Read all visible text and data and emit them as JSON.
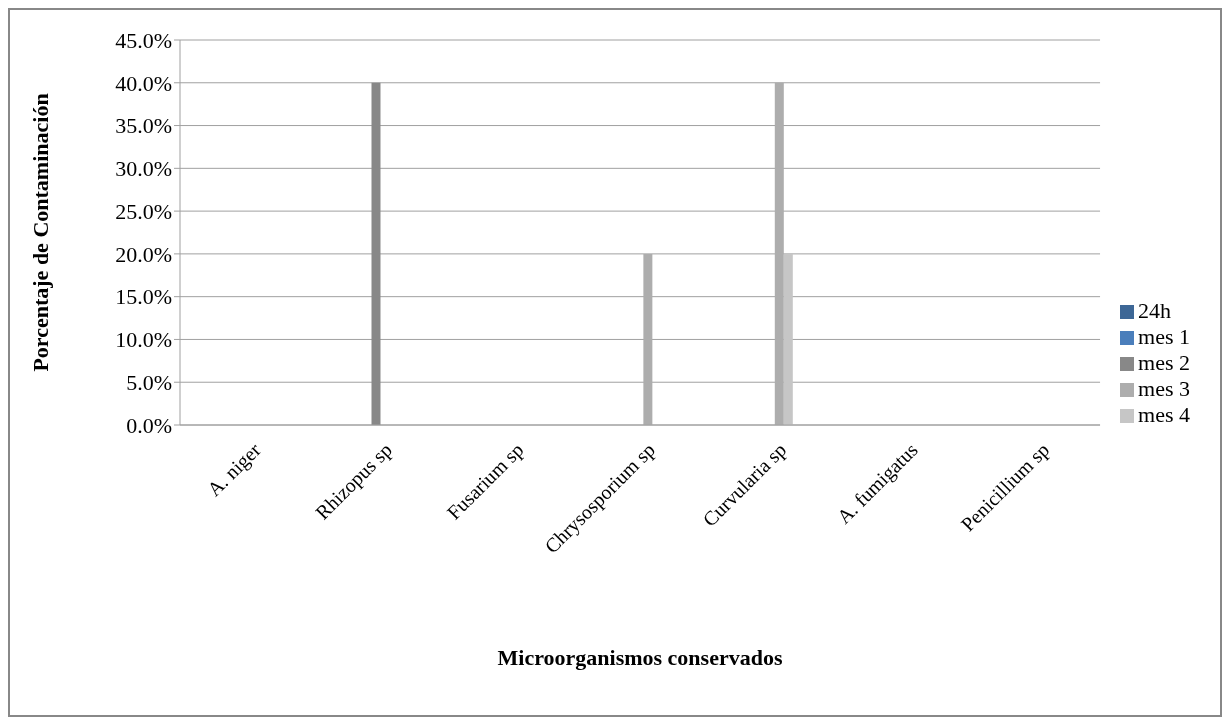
{
  "chart_data": {
    "type": "bar",
    "xlabel": "Microorganismos conservados",
    "ylabel": "Porcentaje de Contaminación",
    "categories": [
      "A. niger",
      "Rhizopus sp",
      "Fusarium sp",
      "Chrysosporium sp",
      "Curvularia sp",
      "A. fumigatus",
      "Penicillium sp"
    ],
    "series": [
      {
        "name": "24h",
        "color": "#3d6796",
        "values": [
          0,
          0,
          0,
          0,
          0,
          0,
          0
        ]
      },
      {
        "name": "mes 1",
        "color": "#4a7ebb",
        "values": [
          0,
          0,
          0,
          0,
          0,
          0,
          0
        ]
      },
      {
        "name": "mes 2",
        "color": "#888888",
        "values": [
          0,
          40,
          0,
          0,
          0,
          0,
          0
        ]
      },
      {
        "name": "mes 3",
        "color": "#adadad",
        "values": [
          0,
          0,
          0,
          20,
          40,
          0,
          0
        ]
      },
      {
        "name": "mes 4",
        "color": "#c6c6c6",
        "values": [
          0,
          0,
          0,
          0,
          20,
          0,
          0
        ]
      }
    ],
    "ylim": [
      0,
      45
    ],
    "yticks": [
      {
        "value": 0,
        "label": "0.0%"
      },
      {
        "value": 5,
        "label": "5.0%"
      },
      {
        "value": 10,
        "label": "10.0%"
      },
      {
        "value": 15,
        "label": "15.0%"
      },
      {
        "value": 20,
        "label": "20.0%"
      },
      {
        "value": 25,
        "label": "25.0%"
      },
      {
        "value": 30,
        "label": "30.0%"
      },
      {
        "value": 35,
        "label": "35.0%"
      },
      {
        "value": 40,
        "label": "40.0%"
      },
      {
        "value": 45,
        "label": "45.0%"
      }
    ],
    "grid": "y",
    "legend": "right"
  }
}
